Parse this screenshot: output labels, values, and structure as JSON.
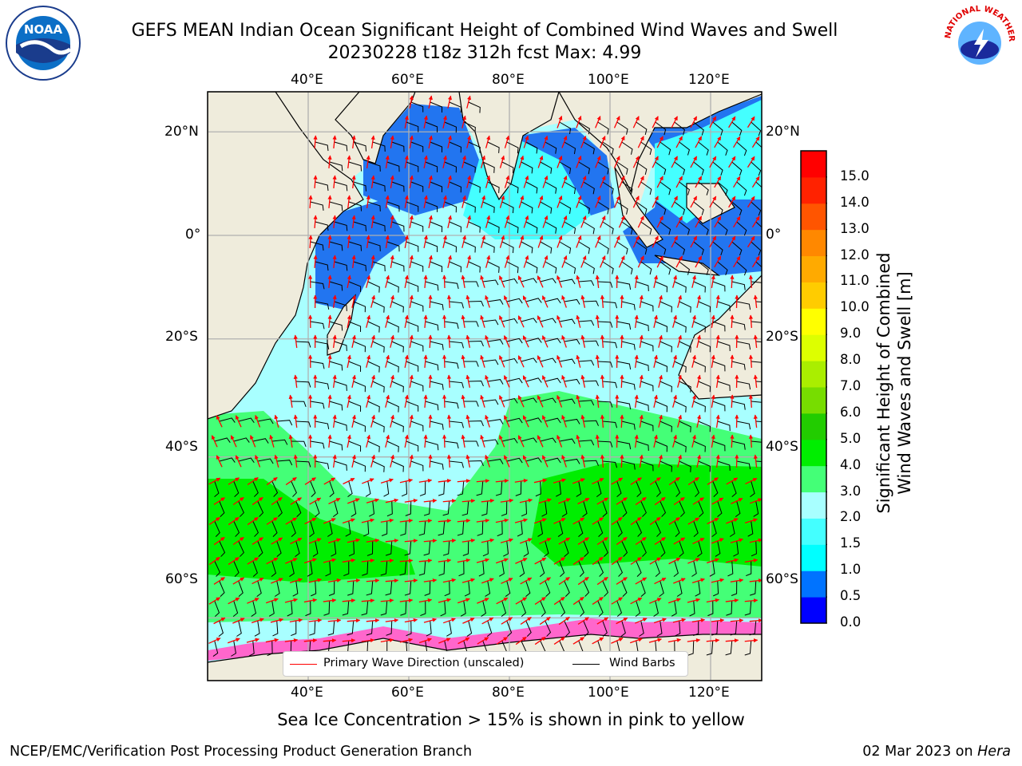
{
  "header": {
    "title_line1": "GEFS MEAN Indian Ocean Significant Height of Combined Wind Waves and Swell",
    "title_line2": "20230228 t18z 312h fcst   Max: 4.99"
  },
  "logos": {
    "left": {
      "name": "noaa-logo",
      "text": "NOAA"
    },
    "right": {
      "name": "nws-logo",
      "text": "NATIONAL WEATHER SERVICE"
    }
  },
  "map": {
    "lon_ticks_top": [
      "40°E",
      "60°E",
      "80°E",
      "100°E",
      "120°E"
    ],
    "lon_ticks_bottom": [
      "40°E",
      "60°E",
      "80°E",
      "100°E",
      "120°E"
    ],
    "lat_ticks_left": [
      "20°N",
      "0°",
      "20°S",
      "40°S",
      "60°S"
    ],
    "lat_ticks_right": [
      "20°N",
      "0°",
      "20°S",
      "40°S",
      "60°S"
    ],
    "lon_values": [
      40,
      60,
      80,
      100,
      120
    ],
    "lat_values": [
      20,
      0,
      -20,
      -40,
      -60
    ],
    "extent": {
      "lon_min": 20,
      "lon_max": 130,
      "lat_min": -69,
      "lat_max": 28
    },
    "colors": {
      "land": "#efecdc",
      "ice": "#ff66cc",
      "wave_arrow": "#ff0000",
      "barb": "#000000"
    }
  },
  "legend": {
    "wave_label": "Primary Wave Direction (unscaled)",
    "barb_label": "Wind Barbs"
  },
  "colorbar": {
    "label_line1": "Significant Height of Combined",
    "label_line2": "Wind Waves and Swell [m]",
    "ticks": [
      "0.0",
      "0.5",
      "1.0",
      "1.5",
      "2.0",
      "3.0",
      "4.0",
      "5.0",
      "6.0",
      "7.0",
      "8.0",
      "9.0",
      "10.0",
      "11.0",
      "12.0",
      "13.0",
      "14.0",
      "15.0"
    ],
    "colors": [
      "#0000ff",
      "#0073ff",
      "#00ffff",
      "#44ffff",
      "#a8ffff",
      "#44ff77",
      "#00ee00",
      "#22cc00",
      "#77dd00",
      "#aaee00",
      "#ddff00",
      "#ffff00",
      "#ffcc00",
      "#ffaa00",
      "#ff8800",
      "#ff5500",
      "#ff2200",
      "#ff0000"
    ]
  },
  "subtitle": "Sea Ice Concentration > 15% is shown in pink to yellow",
  "footer": {
    "left": "NCEP/EMC/Verification Post Processing Product Generation Branch",
    "date": "02 Mar 2023 on ",
    "host": "Hera"
  }
}
